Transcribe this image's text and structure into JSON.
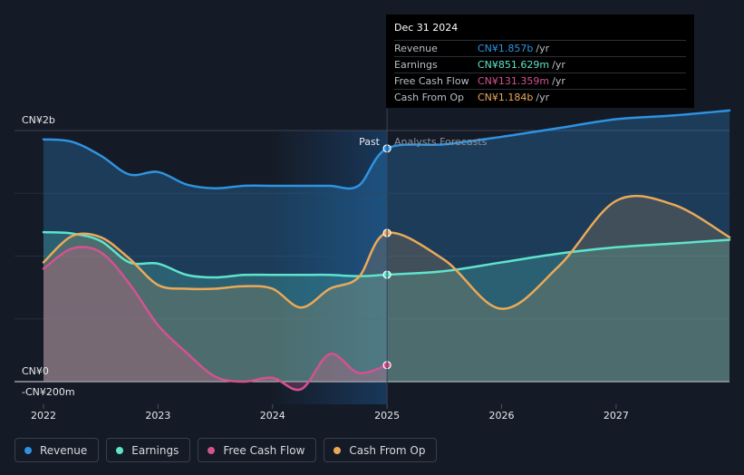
{
  "tooltip": {
    "date": "Dec 31 2024",
    "rows": [
      {
        "label": "Revenue",
        "value": "CN¥1.857b",
        "unit": "/yr",
        "color": "#2e93e0"
      },
      {
        "label": "Earnings",
        "value": "CN¥851.629m",
        "unit": "/yr",
        "color": "#5fe3cb"
      },
      {
        "label": "Free Cash Flow",
        "value": "CN¥131.359m",
        "unit": "/yr",
        "color": "#d4528f"
      },
      {
        "label": "Cash From Op",
        "value": "CN¥1.184b",
        "unit": "/yr",
        "color": "#e9a95a"
      }
    ]
  },
  "legend": [
    {
      "label": "Revenue",
      "color": "#2e93e0"
    },
    {
      "label": "Earnings",
      "color": "#5fe3cb"
    },
    {
      "label": "Free Cash Flow",
      "color": "#d4528f"
    },
    {
      "label": "Cash From Op",
      "color": "#e9a95a"
    }
  ],
  "chart_data": {
    "type": "line",
    "y_tick_labels": [
      "CN¥2b",
      "CN¥0",
      "-CN¥200m"
    ],
    "x_tick_labels": [
      "2022",
      "2023",
      "2024",
      "2025",
      "2026",
      "2027"
    ],
    "ylim": [
      -0.2,
      2.0
    ],
    "xlim": [
      2022.0,
      2027.99
    ],
    "divider_x": 2025.0,
    "past_label": "Past",
    "forecast_label": "Analysts Forecasts",
    "series": [
      {
        "name": "Revenue",
        "color": "#2e93e0",
        "past": [
          [
            2022.0,
            1.93
          ],
          [
            2022.25,
            1.91
          ],
          [
            2022.5,
            1.8
          ],
          [
            2022.75,
            1.65
          ],
          [
            2023.0,
            1.67
          ],
          [
            2023.25,
            1.57
          ],
          [
            2023.5,
            1.54
          ],
          [
            2023.75,
            1.56
          ],
          [
            2024.0,
            1.56
          ],
          [
            2024.25,
            1.56
          ],
          [
            2024.5,
            1.56
          ],
          [
            2024.75,
            1.56
          ],
          [
            2025.0,
            1.857
          ]
        ],
        "forecast": [
          [
            2025.0,
            1.857
          ],
          [
            2025.5,
            1.89
          ],
          [
            2026.0,
            1.95
          ],
          [
            2026.5,
            2.02
          ],
          [
            2027.0,
            2.09
          ],
          [
            2027.5,
            2.12
          ],
          [
            2027.99,
            2.16
          ]
        ]
      },
      {
        "name": "Earnings",
        "color": "#5fe3cb",
        "past": [
          [
            2022.0,
            1.19
          ],
          [
            2022.25,
            1.18
          ],
          [
            2022.5,
            1.12
          ],
          [
            2022.75,
            0.95
          ],
          [
            2023.0,
            0.94
          ],
          [
            2023.25,
            0.85
          ],
          [
            2023.5,
            0.83
          ],
          [
            2023.75,
            0.85
          ],
          [
            2024.0,
            0.85
          ],
          [
            2024.25,
            0.85
          ],
          [
            2024.5,
            0.85
          ],
          [
            2024.75,
            0.84
          ],
          [
            2025.0,
            0.851629
          ]
        ],
        "forecast": [
          [
            2025.0,
            0.851629
          ],
          [
            2025.5,
            0.88
          ],
          [
            2026.0,
            0.95
          ],
          [
            2026.5,
            1.02
          ],
          [
            2027.0,
            1.07
          ],
          [
            2027.5,
            1.1
          ],
          [
            2027.99,
            1.13
          ]
        ]
      },
      {
        "name": "Free Cash Flow",
        "color": "#d4528f",
        "past": [
          [
            2022.0,
            0.9
          ],
          [
            2022.25,
            1.06
          ],
          [
            2022.5,
            1.03
          ],
          [
            2022.75,
            0.78
          ],
          [
            2023.0,
            0.45
          ],
          [
            2023.25,
            0.23
          ],
          [
            2023.5,
            0.04
          ],
          [
            2023.75,
            0.0
          ],
          [
            2024.0,
            0.03
          ],
          [
            2024.25,
            -0.06
          ],
          [
            2024.5,
            0.22
          ],
          [
            2024.75,
            0.07
          ],
          [
            2025.0,
            0.131359
          ]
        ],
        "forecast": []
      },
      {
        "name": "Cash From Op",
        "color": "#e9a95a",
        "past": [
          [
            2022.0,
            0.95
          ],
          [
            2022.25,
            1.16
          ],
          [
            2022.5,
            1.15
          ],
          [
            2022.75,
            0.98
          ],
          [
            2023.0,
            0.77
          ],
          [
            2023.25,
            0.74
          ],
          [
            2023.5,
            0.74
          ],
          [
            2023.75,
            0.76
          ],
          [
            2024.0,
            0.74
          ],
          [
            2024.25,
            0.59
          ],
          [
            2024.5,
            0.74
          ],
          [
            2024.75,
            0.83
          ],
          [
            2025.0,
            1.184
          ]
        ],
        "forecast": [
          [
            2025.0,
            1.184
          ],
          [
            2025.5,
            0.97
          ],
          [
            2026.0,
            0.58
          ],
          [
            2026.5,
            0.92
          ],
          [
            2027.0,
            1.44
          ],
          [
            2027.5,
            1.41
          ],
          [
            2027.99,
            1.15
          ]
        ]
      }
    ]
  }
}
